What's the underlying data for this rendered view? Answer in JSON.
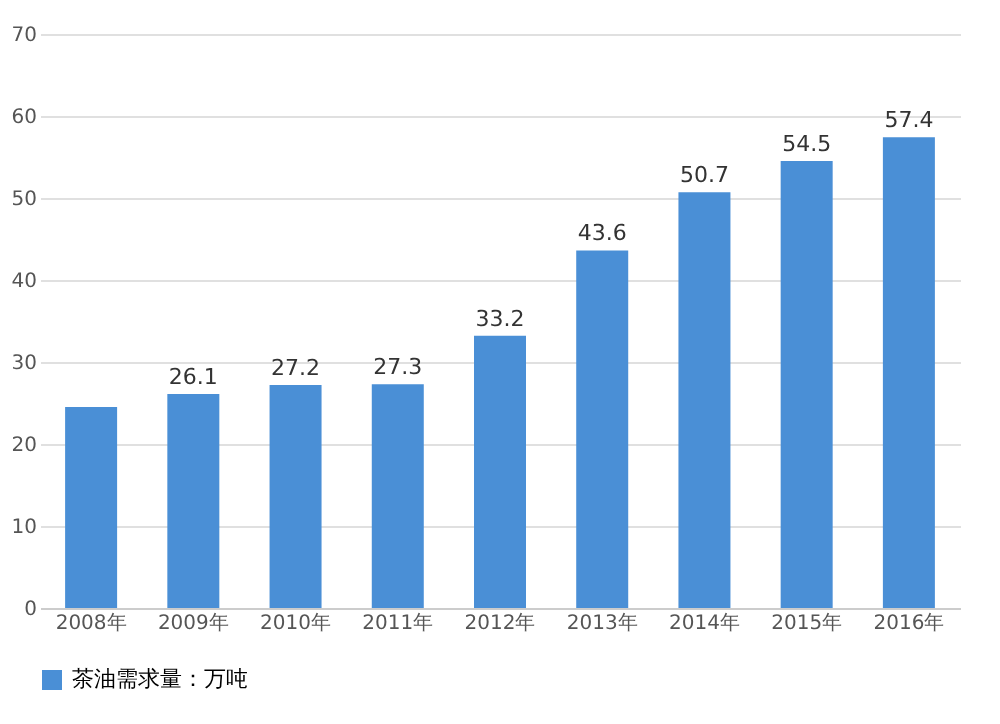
{
  "chart_data": {
    "type": "bar",
    "categories": [
      "2008年",
      "2009年",
      "2010年",
      "2011年",
      "2012年",
      "2013年",
      "2014年",
      "2015年",
      "2016年"
    ],
    "series": [
      {
        "name": "茶油需求量：万吨",
        "color": "#4a8fd6",
        "values": [
          24.5,
          26.1,
          27.2,
          27.3,
          33.2,
          43.6,
          50.7,
          54.5,
          57.4
        ],
        "value_labels": [
          null,
          "26.1",
          "27.2",
          "27.3",
          "33.2",
          "43.6",
          "50.7",
          "54.5",
          "57.4"
        ]
      }
    ],
    "ylim": [
      0,
      70
    ],
    "yticks": [
      0,
      10,
      20,
      30,
      40,
      50,
      60,
      70
    ],
    "grid": "y",
    "legend": "bottom"
  }
}
